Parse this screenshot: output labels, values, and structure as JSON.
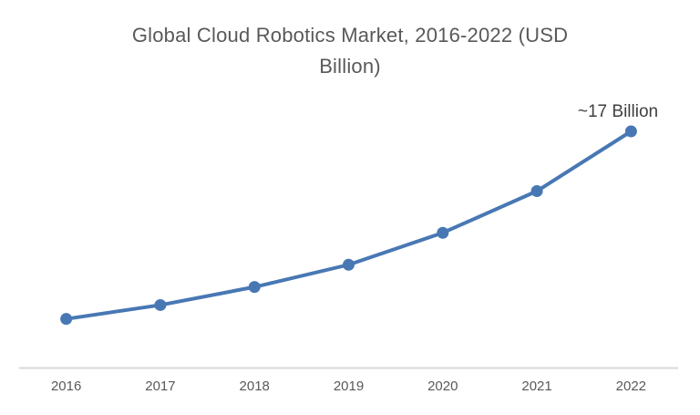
{
  "chart_data": {
    "type": "line",
    "title": "Global Cloud Robotics Market, 2016-2022 (USD Billion)",
    "title_lines": [
      "Global Cloud Robotics Market, 2016-2022 (USD",
      "Billion)"
    ],
    "categories": [
      "2016",
      "2017",
      "2018",
      "2019",
      "2020",
      "2021",
      "2022"
    ],
    "series": [
      {
        "name": "Global Cloud Robotics Market (USD Billion)",
        "values": [
          3.5,
          4.5,
          5.8,
          7.4,
          9.7,
          12.7,
          17
        ],
        "color": "#4878B4"
      }
    ],
    "annotation": "~17 Billion",
    "xlabel": "",
    "ylabel": "",
    "ylim": [
      0,
      17
    ],
    "grid": false,
    "legend": "none",
    "colors": {
      "line": "#4878B4",
      "marker": "#4878B4",
      "axis_line": "#d9d9d9",
      "title_text": "#595959",
      "tick_label_text": "#595959",
      "annotation_text": "#3f3f3f",
      "background": "#ffffff"
    }
  }
}
